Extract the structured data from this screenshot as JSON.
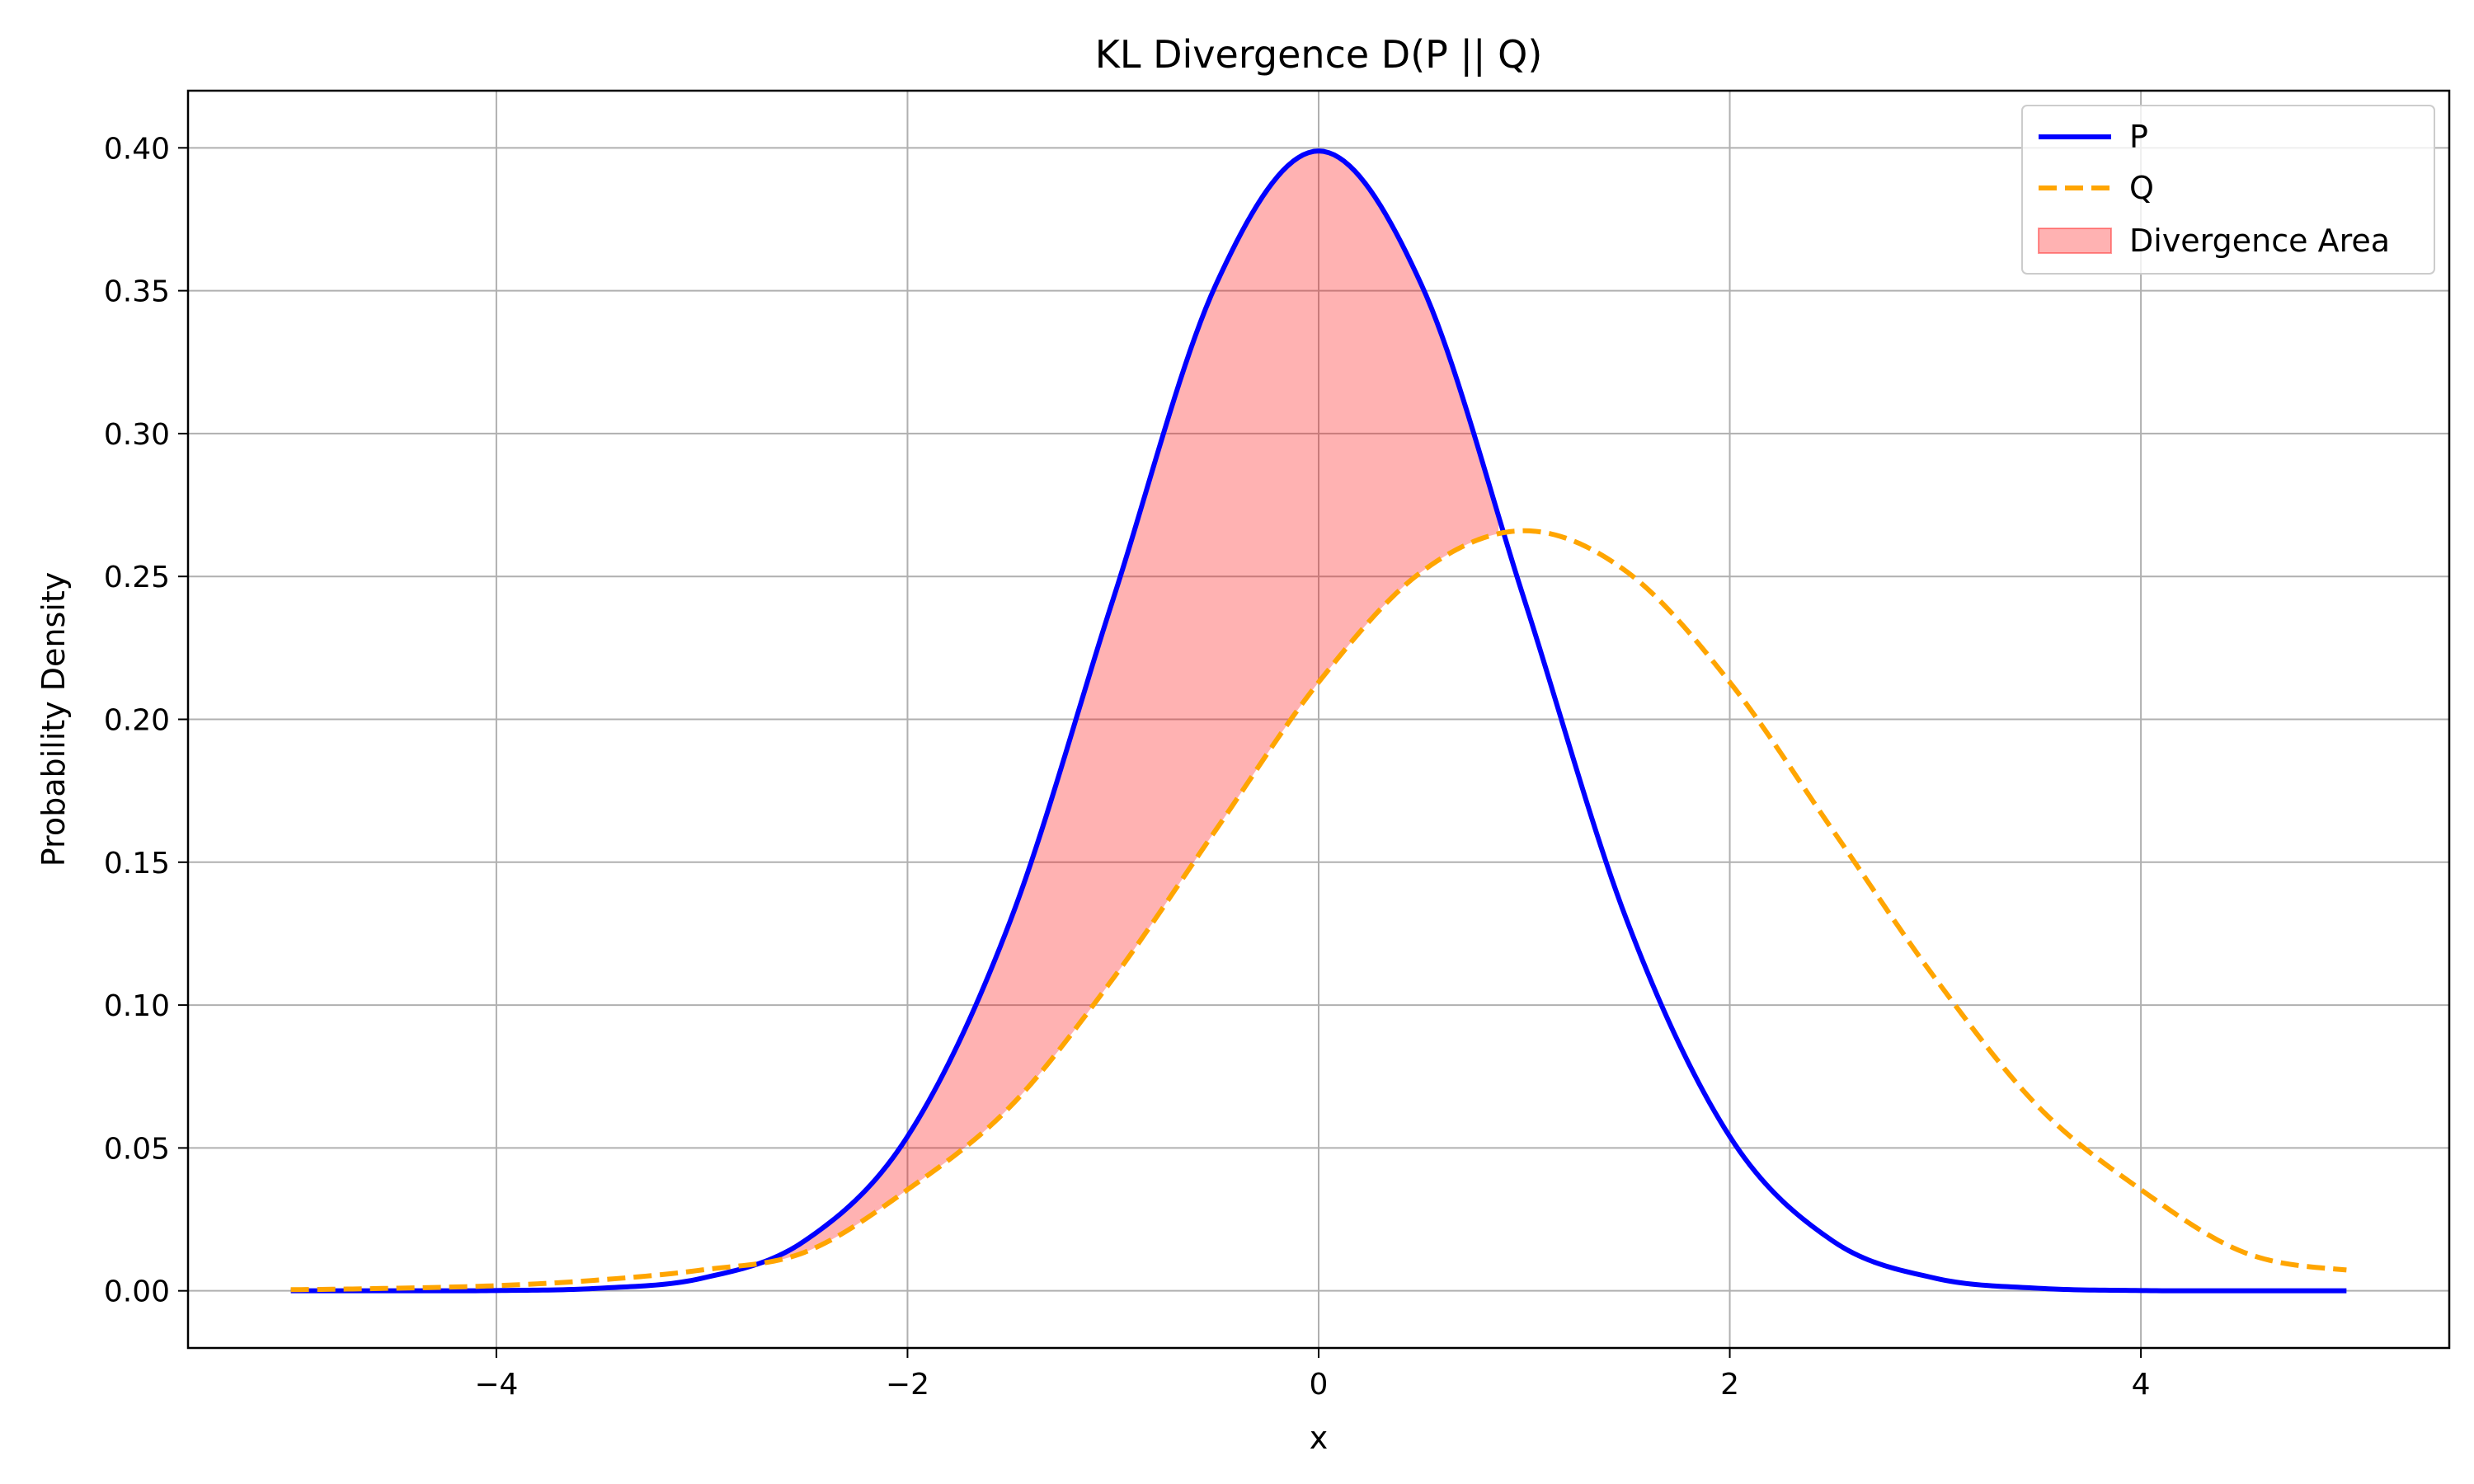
{
  "chart_data": {
    "type": "line",
    "title": "KL Divergence D(P || Q)",
    "xlabel": "x",
    "ylabel": "Probability Density",
    "xlim": [
      -5.5,
      5.5
    ],
    "ylim": [
      -0.02,
      0.42
    ],
    "x_ticks": [
      -4,
      -2,
      0,
      2,
      4
    ],
    "x_tick_labels": [
      "−4",
      "−2",
      "0",
      "2",
      "4"
    ],
    "y_ticks": [
      0.0,
      0.05,
      0.1,
      0.15,
      0.2,
      0.25,
      0.3,
      0.35,
      0.4
    ],
    "y_tick_labels": [
      "0.00",
      "0.05",
      "0.10",
      "0.15",
      "0.20",
      "0.25",
      "0.30",
      "0.35",
      "0.40"
    ],
    "grid": true,
    "legend_position": "top-right",
    "x": [
      -5.0,
      -4.5,
      -4.0,
      -3.5,
      -3.0,
      -2.5,
      -2.0,
      -1.5,
      -1.0,
      -0.5,
      0.0,
      0.5,
      1.0,
      1.5,
      2.0,
      2.5,
      3.0,
      3.5,
      4.0,
      4.5,
      5.0
    ],
    "series": [
      {
        "name": "P",
        "color": "#0000ff",
        "style": "solid",
        "values": [
          0.0,
          0.0,
          0.0001,
          0.0009,
          0.0044,
          0.0175,
          0.054,
          0.1295,
          0.242,
          0.3521,
          0.3989,
          0.3521,
          0.242,
          0.1295,
          0.054,
          0.0175,
          0.0044,
          0.0009,
          0.0001,
          0.0,
          0.0
        ]
      },
      {
        "name": "Q",
        "color": "#ffa500",
        "style": "dashed",
        "values": [
          0.0004,
          0.0009,
          0.0018,
          0.0038,
          0.0073,
          0.0135,
          0.0354,
          0.0645,
          0.1093,
          0.1613,
          0.213,
          0.2516,
          0.266,
          0.2516,
          0.213,
          0.1613,
          0.1093,
          0.0645,
          0.0354,
          0.0135,
          0.0073
        ]
      }
    ],
    "fill": {
      "name": "Divergence Area",
      "color": "#ff0000",
      "opacity": 0.3,
      "between": [
        "P",
        "Q"
      ],
      "where": "P > Q"
    }
  }
}
